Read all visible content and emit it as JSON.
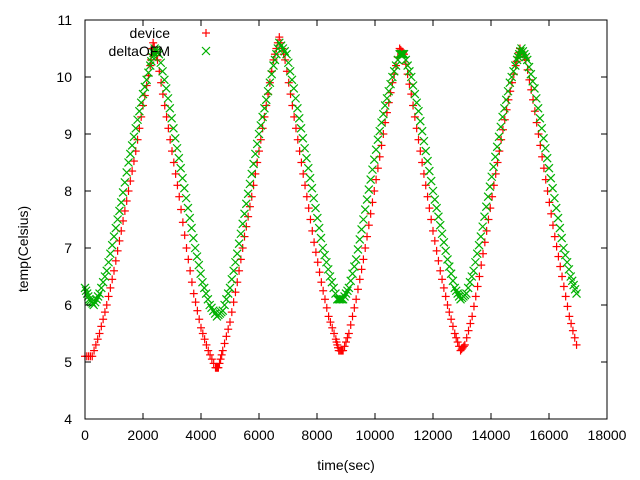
{
  "chart_data": {
    "type": "scatter",
    "title": "",
    "xlabel": "time(sec)",
    "ylabel": "temp(Celsius)",
    "xlim": [
      0,
      18000
    ],
    "ylim": [
      4,
      11
    ],
    "xticks": [
      0,
      2000,
      4000,
      6000,
      8000,
      10000,
      12000,
      14000,
      16000,
      18000
    ],
    "yticks": [
      4,
      5,
      6,
      7,
      8,
      9,
      10,
      11
    ],
    "xtick_labels": [
      "0",
      "2000",
      "4000",
      "6000",
      "8000",
      "10000",
      "12000",
      "14000",
      "16000",
      "18000"
    ],
    "ytick_labels": [
      "4",
      "5",
      "6",
      "7",
      "8",
      "9",
      "10",
      "11"
    ],
    "grid": false,
    "legend_position": "top-left",
    "series": [
      {
        "name": "device",
        "marker": "plus",
        "color": "#ff0000",
        "points": [
          [
            0,
            5.1
          ],
          [
            250,
            5.1
          ],
          [
            500,
            5.5
          ],
          [
            750,
            6.0
          ],
          [
            1000,
            6.6
          ],
          [
            1250,
            7.3
          ],
          [
            1500,
            8.0
          ],
          [
            1750,
            8.7
          ],
          [
            2000,
            9.5
          ],
          [
            2250,
            10.2
          ],
          [
            2350,
            10.6
          ],
          [
            2500,
            10.3
          ],
          [
            2750,
            9.5
          ],
          [
            3000,
            8.7
          ],
          [
            3250,
            7.9
          ],
          [
            3500,
            7.0
          ],
          [
            3750,
            6.2
          ],
          [
            4000,
            5.6
          ],
          [
            4250,
            5.2
          ],
          [
            4500,
            4.9
          ],
          [
            4600,
            4.9
          ],
          [
            4750,
            5.2
          ],
          [
            5000,
            5.7
          ],
          [
            5250,
            6.4
          ],
          [
            5500,
            7.2
          ],
          [
            5750,
            7.9
          ],
          [
            6000,
            8.7
          ],
          [
            6250,
            9.5
          ],
          [
            6500,
            10.3
          ],
          [
            6700,
            10.7
          ],
          [
            6900,
            10.3
          ],
          [
            7150,
            9.5
          ],
          [
            7400,
            8.7
          ],
          [
            7650,
            7.9
          ],
          [
            7900,
            7.1
          ],
          [
            8150,
            6.4
          ],
          [
            8400,
            5.8
          ],
          [
            8650,
            5.4
          ],
          [
            8750,
            5.2
          ],
          [
            8900,
            5.2
          ],
          [
            9100,
            5.5
          ],
          [
            9350,
            6.1
          ],
          [
            9600,
            6.8
          ],
          [
            9850,
            7.6
          ],
          [
            10100,
            8.4
          ],
          [
            10350,
            9.2
          ],
          [
            10600,
            9.9
          ],
          [
            10850,
            10.5
          ],
          [
            11000,
            10.4
          ],
          [
            11250,
            9.7
          ],
          [
            11500,
            8.9
          ],
          [
            11750,
            8.1
          ],
          [
            12000,
            7.3
          ],
          [
            12250,
            6.6
          ],
          [
            12500,
            6.0
          ],
          [
            12750,
            5.5
          ],
          [
            12950,
            5.2
          ],
          [
            13100,
            5.3
          ],
          [
            13350,
            5.8
          ],
          [
            13600,
            6.5
          ],
          [
            13850,
            7.3
          ],
          [
            14100,
            8.1
          ],
          [
            14350,
            8.9
          ],
          [
            14600,
            9.6
          ],
          [
            14850,
            10.2
          ],
          [
            15000,
            10.5
          ],
          [
            15200,
            10.3
          ],
          [
            15450,
            9.6
          ],
          [
            15700,
            8.8
          ],
          [
            15950,
            8.0
          ],
          [
            16200,
            7.2
          ],
          [
            16450,
            6.5
          ],
          [
            16700,
            5.8
          ],
          [
            16950,
            5.3
          ]
        ]
      },
      {
        "name": "deltaOFM",
        "marker": "cross",
        "color": "#00b000",
        "points": [
          [
            0,
            6.3
          ],
          [
            150,
            6.1
          ],
          [
            300,
            6.0
          ],
          [
            500,
            6.2
          ],
          [
            750,
            6.6
          ],
          [
            1000,
            7.2
          ],
          [
            1250,
            7.8
          ],
          [
            1500,
            8.5
          ],
          [
            1750,
            9.1
          ],
          [
            2000,
            9.7
          ],
          [
            2250,
            10.2
          ],
          [
            2400,
            10.5
          ],
          [
            2550,
            10.4
          ],
          [
            2800,
            9.8
          ],
          [
            3050,
            9.1
          ],
          [
            3300,
            8.4
          ],
          [
            3550,
            7.7
          ],
          [
            3800,
            7.0
          ],
          [
            4050,
            6.4
          ],
          [
            4300,
            6.0
          ],
          [
            4550,
            5.8
          ],
          [
            4750,
            5.9
          ],
          [
            5000,
            6.3
          ],
          [
            5250,
            6.9
          ],
          [
            5500,
            7.6
          ],
          [
            5750,
            8.3
          ],
          [
            6000,
            9.0
          ],
          [
            6250,
            9.6
          ],
          [
            6500,
            10.2
          ],
          [
            6700,
            10.6
          ],
          [
            6950,
            10.4
          ],
          [
            7200,
            9.8
          ],
          [
            7450,
            9.1
          ],
          [
            7700,
            8.4
          ],
          [
            7950,
            7.7
          ],
          [
            8200,
            7.0
          ],
          [
            8450,
            6.5
          ],
          [
            8700,
            6.1
          ],
          [
            8900,
            6.1
          ],
          [
            9100,
            6.3
          ],
          [
            9350,
            6.8
          ],
          [
            9600,
            7.5
          ],
          [
            9850,
            8.2
          ],
          [
            10100,
            8.9
          ],
          [
            10350,
            9.5
          ],
          [
            10600,
            10.0
          ],
          [
            10850,
            10.4
          ],
          [
            11000,
            10.4
          ],
          [
            11250,
            10.0
          ],
          [
            11500,
            9.4
          ],
          [
            11750,
            8.7
          ],
          [
            12000,
            8.0
          ],
          [
            12250,
            7.4
          ],
          [
            12500,
            6.8
          ],
          [
            12750,
            6.3
          ],
          [
            12950,
            6.1
          ],
          [
            13150,
            6.2
          ],
          [
            13400,
            6.6
          ],
          [
            13650,
            7.2
          ],
          [
            13900,
            7.9
          ],
          [
            14150,
            8.6
          ],
          [
            14400,
            9.3
          ],
          [
            14650,
            9.9
          ],
          [
            14900,
            10.3
          ],
          [
            15050,
            10.5
          ],
          [
            15250,
            10.3
          ],
          [
            15500,
            9.8
          ],
          [
            15750,
            9.1
          ],
          [
            16000,
            8.4
          ],
          [
            16250,
            7.7
          ],
          [
            16500,
            7.0
          ],
          [
            16750,
            6.5
          ],
          [
            16950,
            6.2
          ]
        ]
      }
    ]
  }
}
